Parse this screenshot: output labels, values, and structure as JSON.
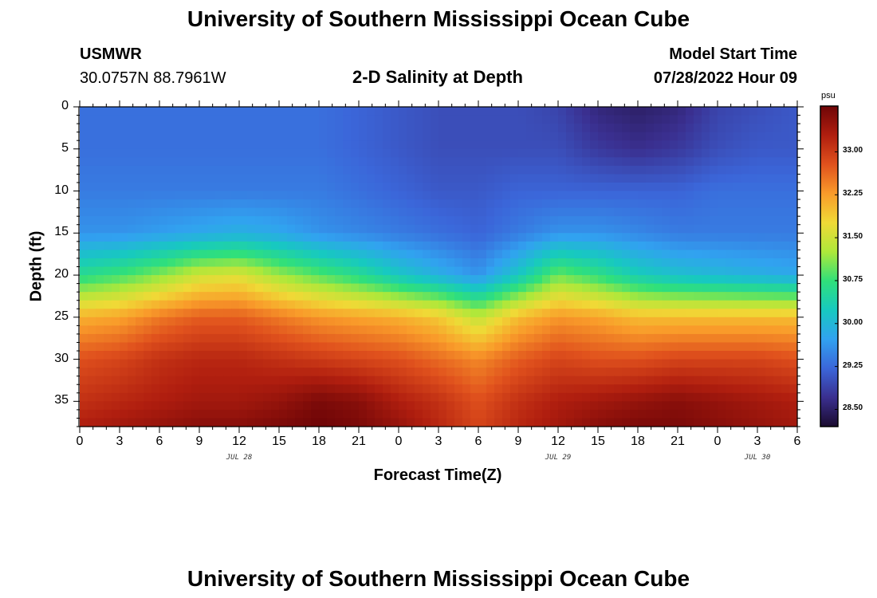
{
  "page": {
    "title_top": "University of Southern Mississippi Ocean Cube",
    "title_bottom": "University of Southern Mississippi Ocean Cube",
    "station_id": "USMWR",
    "station_coords": "30.0757N  88.7961W",
    "plot_title": "2-D Salinity at Depth",
    "model_start_label": "Model Start Time",
    "model_start_value": "07/28/2022 Hour 09"
  },
  "chart_data": {
    "type": "heatmap",
    "title": "2-D Salinity at Depth",
    "xlabel": "Forecast Time(Z)",
    "ylabel": "Depth (ft)",
    "x_range_hours": [
      0,
      54
    ],
    "xlim_hours": [
      0,
      54
    ],
    "ylim": [
      38,
      0
    ],
    "x_tick_labels": [
      "0",
      "3",
      "6",
      "9",
      "12",
      "15",
      "18",
      "21",
      "0",
      "3",
      "6",
      "9",
      "12",
      "15",
      "18",
      "21",
      "0",
      "3",
      "6"
    ],
    "x_date_labels": [
      {
        "text": "JUL 28",
        "hour": 12
      },
      {
        "text": "JUL 29",
        "hour": 36
      },
      {
        "text": "JUL 30",
        "hour": 51
      }
    ],
    "y_ticks": [
      0,
      5,
      10,
      15,
      20,
      25,
      30,
      35
    ],
    "colorbar": {
      "unit": "psu",
      "min": 28.2,
      "max": 33.8,
      "ticks": [
        "28.50",
        "29.25",
        "30.00",
        "30.75",
        "31.50",
        "32.25",
        "33.00"
      ],
      "colors": [
        "#1a0b2e",
        "#3a2f8f",
        "#3b66d9",
        "#31a2f0",
        "#17c9c0",
        "#30e07a",
        "#aee83a",
        "#f0d936",
        "#f99b2a",
        "#e0511d",
        "#b01e0f",
        "#6e0507"
      ]
    },
    "grid_hours": [
      0,
      3,
      6,
      9,
      12,
      15,
      18,
      21,
      24,
      27,
      30,
      33,
      36,
      39,
      42,
      45,
      48,
      51,
      54
    ],
    "grid_depths": [
      0,
      5,
      10,
      15,
      20,
      25,
      30,
      35,
      38
    ],
    "values": [
      [
        29.3,
        29.3,
        29.3,
        29.3,
        29.3,
        29.3,
        29.3,
        29.2,
        29.1,
        29.0,
        29.0,
        29.0,
        28.9,
        28.6,
        28.5,
        28.6,
        28.9,
        29.0,
        29.1
      ],
      [
        29.3,
        29.3,
        29.3,
        29.3,
        29.3,
        29.3,
        29.3,
        29.2,
        29.1,
        29.0,
        29.0,
        29.0,
        29.0,
        28.8,
        28.7,
        28.8,
        29.0,
        29.1,
        29.1
      ],
      [
        29.4,
        29.4,
        29.4,
        29.4,
        29.4,
        29.4,
        29.4,
        29.3,
        29.2,
        29.1,
        29.1,
        29.2,
        29.2,
        29.2,
        29.2,
        29.2,
        29.3,
        29.3,
        29.3
      ],
      [
        29.6,
        29.6,
        29.7,
        29.8,
        29.9,
        29.8,
        29.6,
        29.5,
        29.4,
        29.3,
        29.2,
        29.4,
        29.6,
        29.6,
        29.5,
        29.4,
        29.4,
        29.4,
        29.4
      ],
      [
        30.6,
        30.8,
        31.1,
        31.5,
        31.6,
        31.2,
        30.9,
        30.6,
        30.2,
        29.9,
        29.6,
        30.2,
        31.0,
        30.7,
        30.3,
        30.1,
        30.0,
        29.9,
        29.8
      ],
      [
        32.1,
        32.2,
        32.5,
        32.7,
        32.7,
        32.5,
        32.3,
        32.2,
        32.1,
        31.9,
        31.4,
        32.0,
        32.3,
        32.2,
        32.0,
        32.0,
        32.0,
        32.0,
        32.0
      ],
      [
        32.8,
        32.9,
        33.1,
        33.2,
        33.2,
        33.1,
        33.0,
        32.9,
        32.8,
        32.6,
        32.4,
        32.7,
        32.9,
        32.8,
        32.8,
        32.9,
        32.9,
        32.9,
        32.8
      ],
      [
        33.1,
        33.2,
        33.3,
        33.4,
        33.4,
        33.5,
        33.7,
        33.6,
        33.3,
        33.1,
        32.8,
        33.1,
        33.3,
        33.4,
        33.5,
        33.6,
        33.5,
        33.4,
        33.3
      ],
      [
        33.3,
        33.4,
        33.5,
        33.6,
        33.6,
        33.7,
        33.8,
        33.7,
        33.5,
        33.2,
        32.9,
        33.2,
        33.4,
        33.6,
        33.7,
        33.7,
        33.6,
        33.5,
        33.4
      ]
    ]
  }
}
